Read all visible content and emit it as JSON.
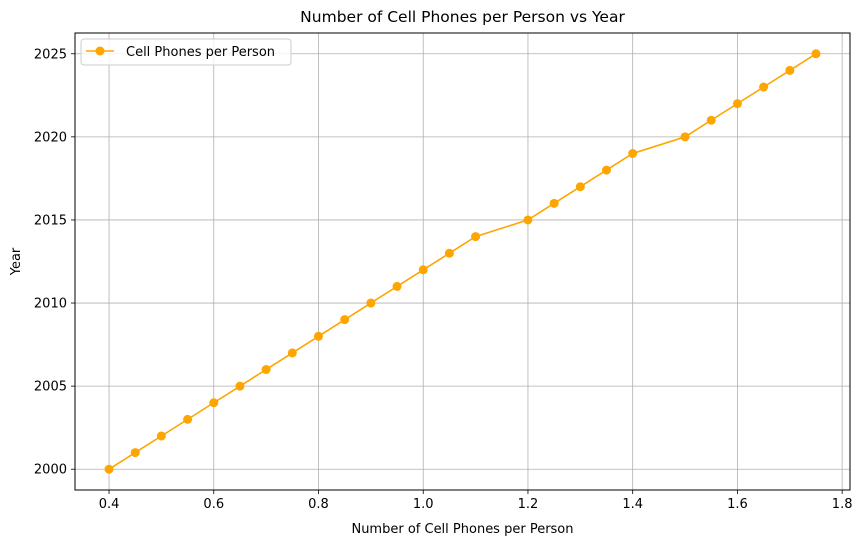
{
  "chart_data": {
    "type": "line",
    "title": "Number of Cell Phones per Person vs Year",
    "xlabel": "Number of Cell Phones per Person",
    "ylabel": "Year",
    "xlim": [
      0.335,
      1.815
    ],
    "ylim": [
      1998.75,
      2026.25
    ],
    "xticks": [
      0.4,
      0.6,
      0.8,
      1.0,
      1.2,
      1.4,
      1.6,
      1.8
    ],
    "xtick_labels": [
      "0.4",
      "0.6",
      "0.8",
      "1.0",
      "1.2",
      "1.4",
      "1.6",
      "1.8"
    ],
    "yticks": [
      2000,
      2005,
      2010,
      2015,
      2020,
      2025
    ],
    "ytick_labels": [
      "2000",
      "2005",
      "2010",
      "2015",
      "2020",
      "2025"
    ],
    "grid": true,
    "legend_position": "top-left",
    "series": [
      {
        "name": "Cell Phones per Person",
        "color": "#FFA500",
        "marker": "circle",
        "points": [
          {
            "x": 0.4,
            "y": 2000
          },
          {
            "x": 0.45,
            "y": 2001
          },
          {
            "x": 0.5,
            "y": 2002
          },
          {
            "x": 0.55,
            "y": 2003
          },
          {
            "x": 0.6,
            "y": 2004
          },
          {
            "x": 0.65,
            "y": 2005
          },
          {
            "x": 0.7,
            "y": 2006
          },
          {
            "x": 0.75,
            "y": 2007
          },
          {
            "x": 0.8,
            "y": 2008
          },
          {
            "x": 0.85,
            "y": 2009
          },
          {
            "x": 0.9,
            "y": 2010
          },
          {
            "x": 0.95,
            "y": 2011
          },
          {
            "x": 1.0,
            "y": 2012
          },
          {
            "x": 1.05,
            "y": 2013
          },
          {
            "x": 1.1,
            "y": 2014
          },
          {
            "x": 1.2,
            "y": 2015
          },
          {
            "x": 1.25,
            "y": 2016
          },
          {
            "x": 1.3,
            "y": 2017
          },
          {
            "x": 1.35,
            "y": 2018
          },
          {
            "x": 1.4,
            "y": 2019
          },
          {
            "x": 1.5,
            "y": 2020
          },
          {
            "x": 1.55,
            "y": 2021
          },
          {
            "x": 1.6,
            "y": 2022
          },
          {
            "x": 1.65,
            "y": 2023
          },
          {
            "x": 1.7,
            "y": 2024
          },
          {
            "x": 1.75,
            "y": 2025
          }
        ]
      }
    ]
  }
}
